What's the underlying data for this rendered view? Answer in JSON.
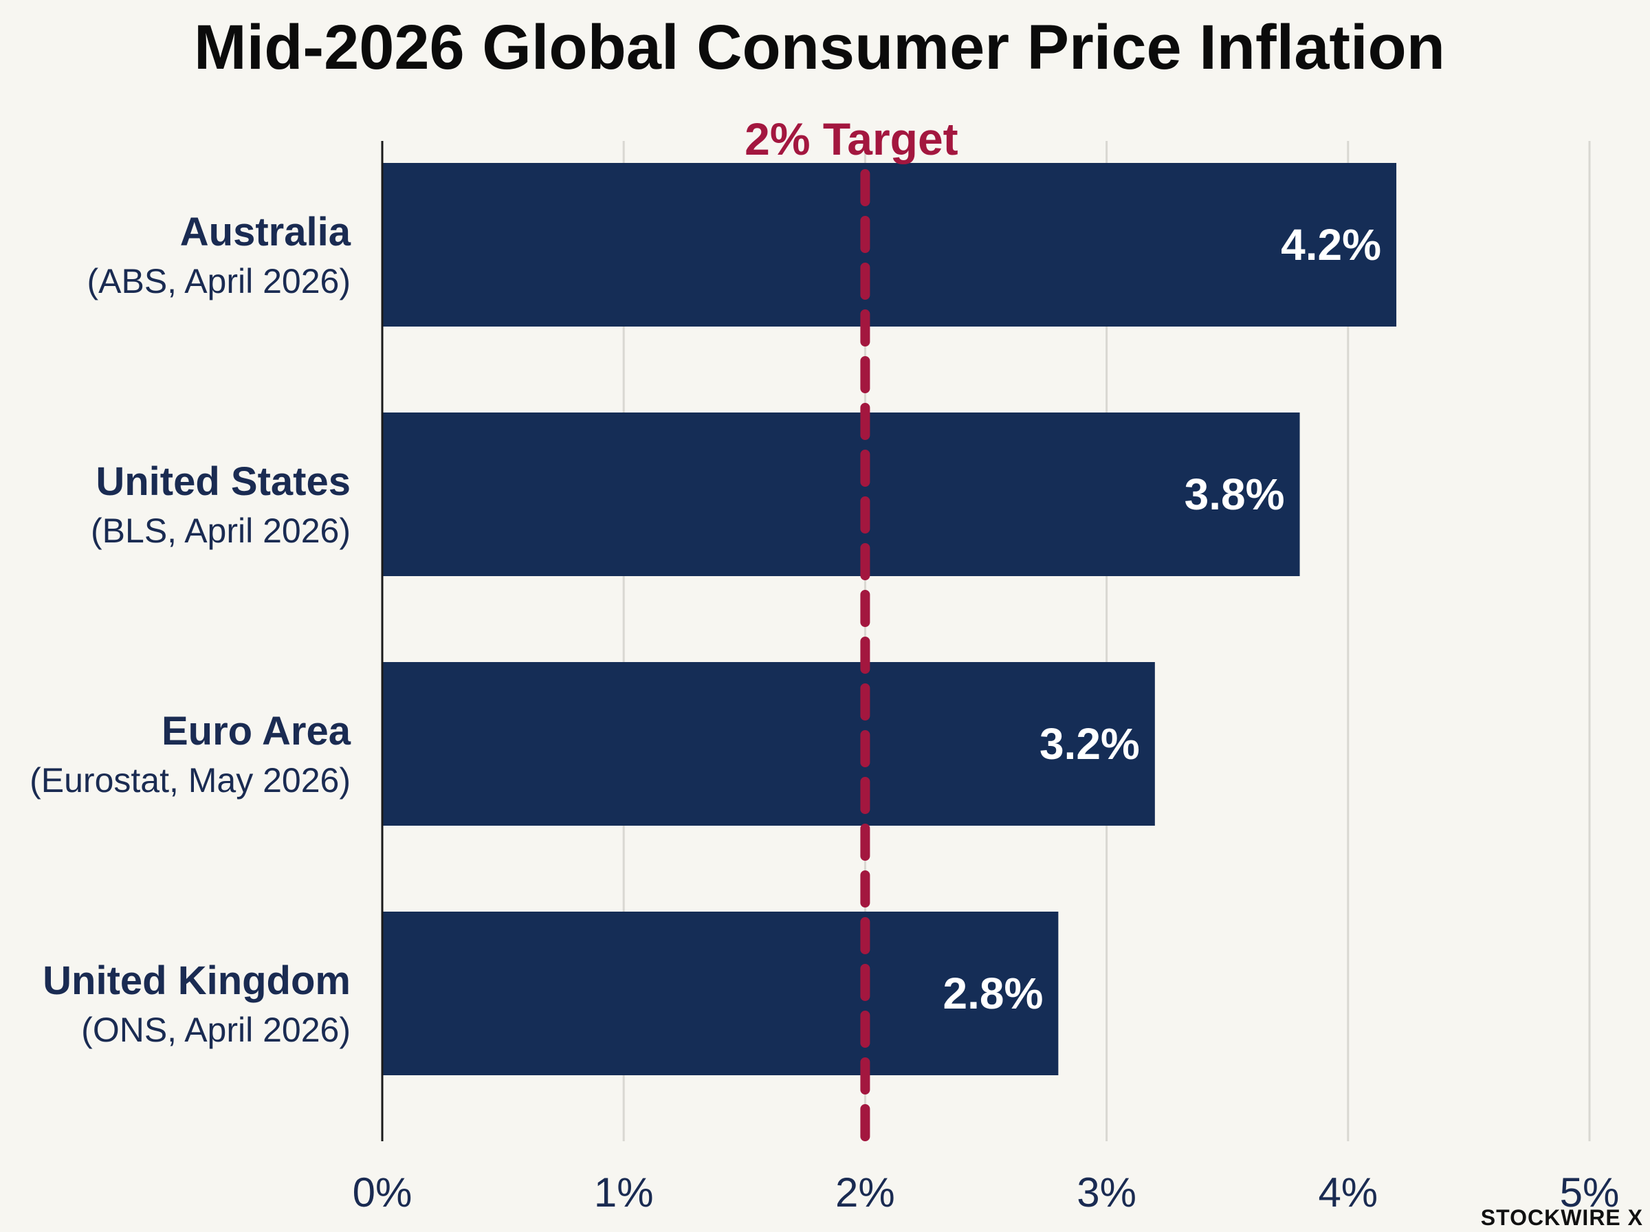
{
  "chart_data": {
    "type": "bar",
    "orientation": "horizontal",
    "title": "Mid-2026 Global Consumer Price Inflation",
    "categories": [
      {
        "name": "Australia",
        "source": "(ABS, April 2026)"
      },
      {
        "name": "United States",
        "source": "(BLS, April 2026)"
      },
      {
        "name": "Euro Area",
        "source": "(Eurostat, May 2026)"
      },
      {
        "name": "United Kingdom",
        "source": "(ONS, April 2026)"
      }
    ],
    "values": [
      4.2,
      3.8,
      3.2,
      2.8
    ],
    "value_labels": [
      "4.2%",
      "3.8%",
      "3.2%",
      "2.8%"
    ],
    "xlim": [
      0,
      5
    ],
    "x_ticks": [
      0,
      1,
      2,
      3,
      4,
      5
    ],
    "x_tick_labels": [
      "0%",
      "1%",
      "2%",
      "3%",
      "4%",
      "5%"
    ],
    "grid": true,
    "reference_line": {
      "value": 2,
      "label": "2% Target",
      "style": "dashed"
    },
    "colors": {
      "bar": "#152d56",
      "target": "#a3173f",
      "grid": "#d9d8d2",
      "background": "#f7f6f1",
      "text": "#1a2b52"
    }
  },
  "watermark": "STOCKWIRE X"
}
